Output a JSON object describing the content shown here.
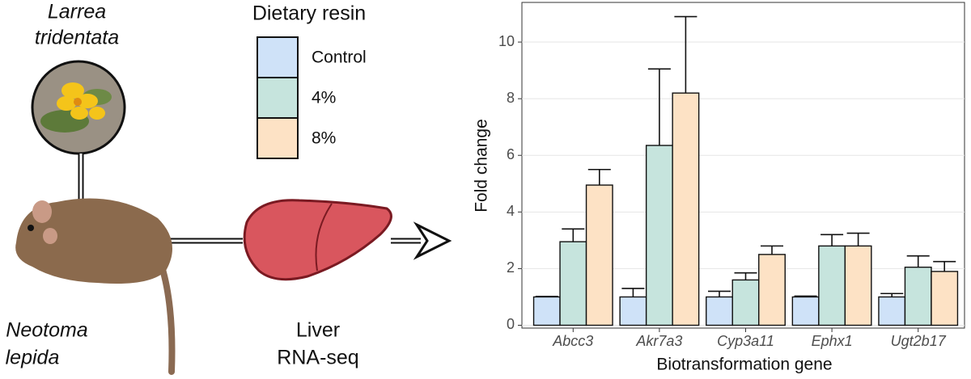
{
  "illustration": {
    "plant_name": [
      "Larrea",
      "tridentata"
    ],
    "animal_name": [
      "Neotoma",
      "lepida"
    ],
    "method": [
      "Liver",
      "RNA-seq"
    ]
  },
  "chart_data": {
    "type": "bar",
    "legend_title": "Dietary resin",
    "x_label": "Biotransformation gene",
    "y_label": "Fold change",
    "categories": [
      "Abcc3",
      "Akr7a3",
      "Cyp3a11",
      "Ephx1",
      "Ugt2b17"
    ],
    "series": [
      {
        "name": "Control",
        "color": "#cfe2f8",
        "values": [
          1.0,
          1.0,
          1.0,
          1.0,
          1.0
        ],
        "errors": [
          0.02,
          0.3,
          0.2,
          0.03,
          0.12
        ]
      },
      {
        "name": "4%",
        "color": "#c6e4dd",
        "values": [
          2.95,
          6.35,
          1.6,
          2.8,
          2.05
        ],
        "errors": [
          0.45,
          2.7,
          0.25,
          0.4,
          0.4
        ]
      },
      {
        "name": "8%",
        "color": "#fde2c5",
        "values": [
          4.95,
          8.2,
          2.5,
          2.8,
          1.9
        ],
        "errors": [
          0.55,
          2.7,
          0.3,
          0.45,
          0.35
        ]
      }
    ],
    "ylim": [
      -0.1,
      11.4
    ],
    "yticks": [
      0,
      2,
      4,
      6,
      8,
      10
    ],
    "grid": true
  }
}
